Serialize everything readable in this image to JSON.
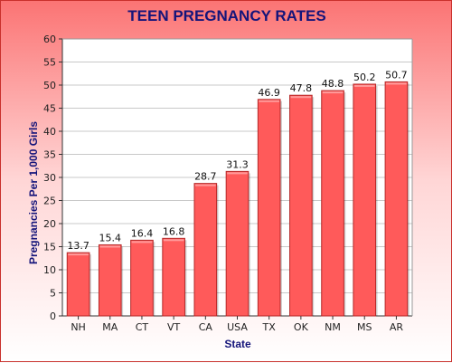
{
  "chart_data": {
    "type": "bar",
    "title": "TEEN PREGNANCY RATES",
    "xlabel": "State",
    "ylabel": "Pregnancies Per 1,000 Girls",
    "categories": [
      "NH",
      "MA",
      "CT",
      "VT",
      "CA",
      "USA",
      "TX",
      "OK",
      "NM",
      "MS",
      "AR"
    ],
    "values": [
      13.7,
      15.4,
      16.4,
      16.8,
      28.7,
      31.3,
      46.9,
      47.8,
      48.8,
      50.2,
      50.7
    ],
    "data_labels": [
      "13.7",
      "15.4",
      "16.4",
      "16.8",
      "28.7",
      "31.3",
      "46.9",
      "47.8",
      "48.8",
      "50.2",
      "50.7"
    ],
    "ylim": [
      0,
      60
    ],
    "yticks": [
      0,
      5,
      10,
      15,
      20,
      25,
      30,
      35,
      40,
      45,
      50,
      55,
      60
    ],
    "grid": true,
    "legend": "none",
    "colors": {
      "bar": "#ff5a5a",
      "bar_edge": "#b52828",
      "bar_top": "#ff9a9a",
      "title": "#14147a",
      "grid": "#c8c8c8",
      "plot_bg": "#ffffff"
    }
  }
}
